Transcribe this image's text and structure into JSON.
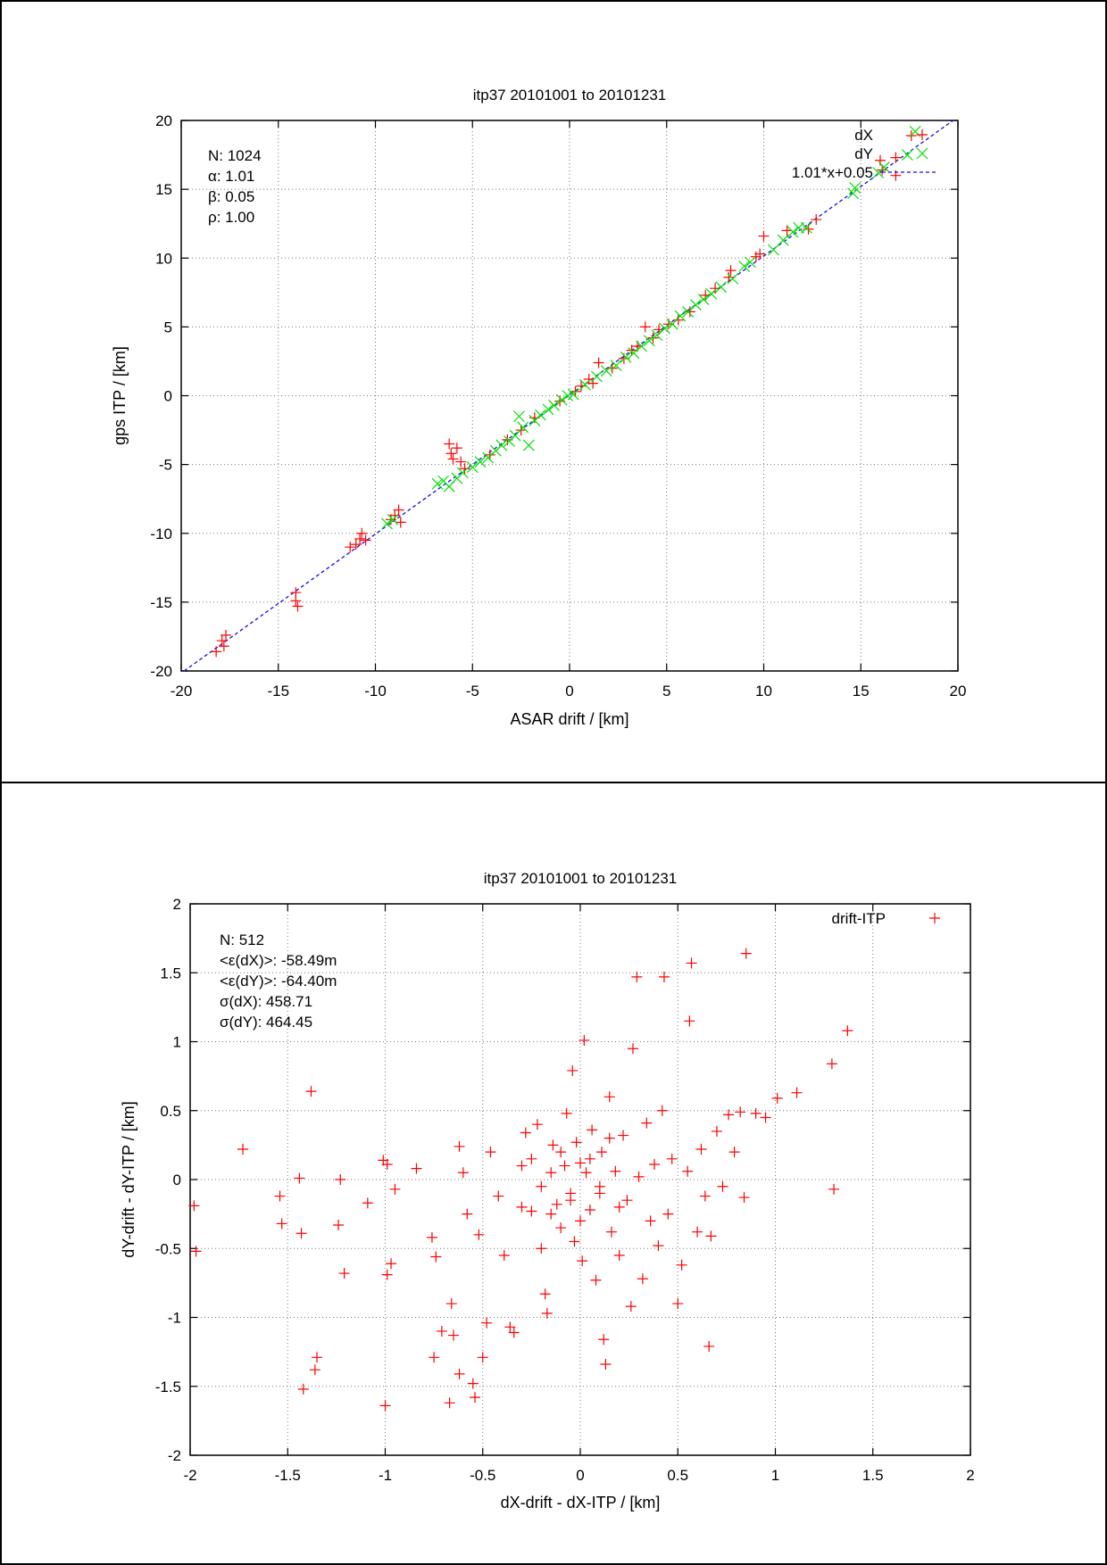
{
  "chart_data": [
    {
      "type": "scatter",
      "title": "itp37 20101001 to 20101231",
      "xlabel": "ASAR drift / [km]",
      "ylabel": "gps ITP / [km]",
      "xlim": [
        -20,
        20
      ],
      "ylim": [
        -20,
        20
      ],
      "xticks": [
        "-20",
        "-15",
        "-10",
        "-5",
        "0",
        "5",
        "10",
        "15",
        "20"
      ],
      "yticks": [
        "-20",
        "-15",
        "-10",
        "-5",
        "0",
        "5",
        "10",
        "15",
        "20"
      ],
      "grid": true,
      "legend_position": "top-right",
      "stats": [
        "N: 1024",
        "α: 1.01",
        "β: 0.05",
        "ρ: 1.00"
      ],
      "fit": {
        "label": "1.01*x+0.05",
        "slope": 1.01,
        "intercept": 0.05,
        "color": "#1010e0"
      },
      "series": [
        {
          "name": "dX",
          "marker": "plus",
          "color": "#ff0000",
          "points": [
            [
              -18.2,
              -18.6
            ],
            [
              -17.9,
              -17.8
            ],
            [
              -17.8,
              -18.2
            ],
            [
              -17.7,
              -17.4
            ],
            [
              -14.1,
              -14.3
            ],
            [
              -14.1,
              -14.9
            ],
            [
              -14.0,
              -15.3
            ],
            [
              -11.3,
              -11.0
            ],
            [
              -11.0,
              -10.8
            ],
            [
              -10.8,
              -10.4
            ],
            [
              -10.7,
              -10.0
            ],
            [
              -10.5,
              -10.5
            ],
            [
              -9.2,
              -9.0
            ],
            [
              -9.0,
              -8.7
            ],
            [
              -8.8,
              -8.3
            ],
            [
              -8.7,
              -9.2
            ],
            [
              -6.2,
              -3.5
            ],
            [
              -6.1,
              -4.2
            ],
            [
              -6.0,
              -4.6
            ],
            [
              -5.8,
              -3.8
            ],
            [
              -5.6,
              -4.8
            ],
            [
              -5.4,
              -5.3
            ],
            [
              -4.1,
              -4.3
            ],
            [
              -3.2,
              -3.2
            ],
            [
              -2.5,
              -2.5
            ],
            [
              -1.8,
              -1.6
            ],
            [
              -0.5,
              -0.4
            ],
            [
              0.3,
              0.3
            ],
            [
              0.6,
              0.7
            ],
            [
              1.0,
              1.2
            ],
            [
              1.2,
              0.9
            ],
            [
              1.5,
              2.4
            ],
            [
              2.2,
              2.0
            ],
            [
              2.8,
              2.7
            ],
            [
              3.2,
              3.3
            ],
            [
              3.5,
              3.6
            ],
            [
              3.9,
              5.0
            ],
            [
              4.3,
              4.2
            ],
            [
              4.6,
              4.8
            ],
            [
              5.1,
              5.2
            ],
            [
              5.6,
              5.5
            ],
            [
              6.2,
              6.1
            ],
            [
              7.0,
              7.3
            ],
            [
              7.5,
              7.8
            ],
            [
              8.2,
              8.6
            ],
            [
              8.3,
              9.1
            ],
            [
              9.6,
              10.1
            ],
            [
              9.8,
              10.3
            ],
            [
              10.0,
              11.6
            ],
            [
              11.2,
              12.0
            ],
            [
              12.3,
              12.1
            ],
            [
              12.7,
              12.8
            ],
            [
              16.0,
              17.1
            ],
            [
              16.1,
              16.4
            ],
            [
              16.8,
              16.0
            ],
            [
              16.8,
              17.3
            ],
            [
              17.6,
              18.9
            ]
          ]
        },
        {
          "name": "dY",
          "marker": "cross",
          "color": "#00e000",
          "points": [
            [
              -6.8,
              -6.4
            ],
            [
              -6.5,
              -6.2
            ],
            [
              -6.2,
              -6.6
            ],
            [
              -5.8,
              -6.0
            ],
            [
              -5.5,
              -5.6
            ],
            [
              -5.0,
              -5.2
            ],
            [
              -4.6,
              -4.8
            ],
            [
              -4.2,
              -4.5
            ],
            [
              -3.8,
              -4.0
            ],
            [
              -3.5,
              -3.6
            ],
            [
              -3.1,
              -3.3
            ],
            [
              -2.8,
              -2.9
            ],
            [
              -2.6,
              -1.5
            ],
            [
              -2.4,
              -2.3
            ],
            [
              -2.1,
              -3.6
            ],
            [
              -1.8,
              -1.8
            ],
            [
              -1.5,
              -1.4
            ],
            [
              -1.1,
              -1.0
            ],
            [
              -0.8,
              -0.7
            ],
            [
              -0.4,
              -0.3
            ],
            [
              -0.1,
              0.0
            ],
            [
              0.2,
              0.1
            ],
            [
              -9.4,
              -9.3
            ],
            [
              -9.1,
              -9.0
            ],
            [
              0.8,
              0.8
            ],
            [
              1.4,
              1.4
            ],
            [
              1.9,
              1.8
            ],
            [
              2.4,
              2.2
            ],
            [
              2.9,
              2.8
            ],
            [
              3.3,
              3.1
            ],
            [
              3.7,
              3.6
            ],
            [
              4.1,
              4.0
            ],
            [
              4.5,
              4.4
            ],
            [
              4.9,
              4.9
            ],
            [
              5.3,
              5.2
            ],
            [
              5.7,
              5.8
            ],
            [
              6.1,
              6.1
            ],
            [
              6.5,
              6.6
            ],
            [
              6.9,
              7.0
            ],
            [
              7.3,
              7.4
            ],
            [
              7.8,
              7.9
            ],
            [
              8.4,
              8.5
            ],
            [
              9.0,
              9.4
            ],
            [
              9.3,
              9.7
            ],
            [
              10.5,
              10.6
            ],
            [
              11.0,
              11.3
            ],
            [
              11.5,
              11.9
            ],
            [
              11.8,
              12.2
            ],
            [
              12.2,
              12.2
            ],
            [
              14.6,
              14.7
            ],
            [
              14.7,
              15.1
            ],
            [
              15.9,
              16.2
            ],
            [
              16.2,
              16.6
            ],
            [
              17.4,
              17.5
            ],
            [
              17.8,
              19.2
            ]
          ]
        }
      ]
    },
    {
      "type": "scatter",
      "title": "itp37 20101001 to 20101231",
      "xlabel": "dX-drift - dX-ITP / [km]",
      "ylabel": "dY-drift - dY-ITP / [km]",
      "xlim": [
        -2,
        2
      ],
      "ylim": [
        -2,
        2
      ],
      "xticks": [
        "-2",
        "-1.5",
        "-1",
        "-0.5",
        "0",
        "0.5",
        "1",
        "1.5",
        "2"
      ],
      "yticks": [
        "-2",
        "-1.5",
        "-1",
        "-0.5",
        "0",
        "0.5",
        "1",
        "1.5",
        "2"
      ],
      "grid": true,
      "legend_position": "top-right",
      "stats": [
        "N: 512",
        "<ε(dX)>:  -58.49m",
        "<ε(dY)>: -64.40m",
        "σ(dX):  458.71",
        "σ(dY):  464.45"
      ],
      "series": [
        {
          "name": "drift-ITP",
          "marker": "plus",
          "color": "#ff0000",
          "points": [
            [
              -1.98,
              -0.19
            ],
            [
              -1.97,
              -0.52
            ],
            [
              -1.73,
              0.22
            ],
            [
              -1.54,
              -0.12
            ],
            [
              -1.53,
              -0.32
            ],
            [
              -1.44,
              0.01
            ],
            [
              -1.43,
              -0.39
            ],
            [
              -1.42,
              -1.52
            ],
            [
              -1.38,
              0.64
            ],
            [
              -1.36,
              -1.38
            ],
            [
              -1.35,
              -1.29
            ],
            [
              -1.23,
              0.0
            ],
            [
              -1.24,
              -0.33
            ],
            [
              -1.21,
              -0.68
            ],
            [
              -1.09,
              -0.17
            ],
            [
              -1.01,
              0.14
            ],
            [
              -0.99,
              0.11
            ],
            [
              -0.99,
              -0.69
            ],
            [
              -0.97,
              -0.61
            ],
            [
              -0.95,
              -0.07
            ],
            [
              -0.84,
              0.08
            ],
            [
              -1.0,
              -1.64
            ],
            [
              -0.76,
              -0.42
            ],
            [
              -0.74,
              -0.56
            ],
            [
              -0.75,
              -1.29
            ],
            [
              -0.71,
              -1.1
            ],
            [
              -0.66,
              -0.9
            ],
            [
              -0.67,
              -1.62
            ],
            [
              -0.65,
              -1.13
            ],
            [
              -0.62,
              -1.41
            ],
            [
              -0.62,
              0.24
            ],
            [
              -0.6,
              0.05
            ],
            [
              -0.58,
              -0.25
            ],
            [
              -0.55,
              -1.48
            ],
            [
              -0.54,
              -1.58
            ],
            [
              -0.52,
              -0.4
            ],
            [
              -0.5,
              -1.29
            ],
            [
              -0.48,
              -1.04
            ],
            [
              -0.46,
              0.2
            ],
            [
              -0.42,
              -0.12
            ],
            [
              -0.39,
              -0.55
            ],
            [
              -0.36,
              -1.07
            ],
            [
              -0.34,
              -1.11
            ],
            [
              -0.3,
              0.1
            ],
            [
              -0.28,
              0.34
            ],
            [
              -0.25,
              -0.23
            ],
            [
              -0.22,
              0.4
            ],
            [
              -0.2,
              -0.5
            ],
            [
              -0.18,
              -0.83
            ],
            [
              -0.17,
              -0.97
            ],
            [
              -0.15,
              0.05
            ],
            [
              -0.14,
              0.25
            ],
            [
              -0.12,
              -0.18
            ],
            [
              -0.1,
              -0.35
            ],
            [
              -0.08,
              0.1
            ],
            [
              -0.07,
              0.48
            ],
            [
              -0.05,
              -0.1
            ],
            [
              -0.04,
              0.79
            ],
            [
              -0.03,
              -0.45
            ],
            [
              -0.02,
              0.27
            ],
            [
              0.0,
              0.12
            ],
            [
              0.0,
              -0.3
            ],
            [
              0.01,
              -0.59
            ],
            [
              0.02,
              1.01
            ],
            [
              0.03,
              0.05
            ],
            [
              0.05,
              -0.22
            ],
            [
              0.06,
              0.36
            ],
            [
              0.08,
              -0.73
            ],
            [
              0.1,
              -0.05
            ],
            [
              0.11,
              0.2
            ],
            [
              0.12,
              -1.16
            ],
            [
              0.13,
              -1.34
            ],
            [
              0.15,
              0.6
            ],
            [
              0.16,
              -0.38
            ],
            [
              0.18,
              0.06
            ],
            [
              0.2,
              -0.55
            ],
            [
              0.22,
              0.32
            ],
            [
              0.24,
              -0.15
            ],
            [
              0.26,
              -0.92
            ],
            [
              0.27,
              0.95
            ],
            [
              0.29,
              1.47
            ],
            [
              0.3,
              0.02
            ],
            [
              0.32,
              -0.72
            ],
            [
              0.34,
              0.41
            ],
            [
              0.36,
              -0.3
            ],
            [
              0.38,
              0.11
            ],
            [
              0.4,
              -0.48
            ],
            [
              0.42,
              0.5
            ],
            [
              0.43,
              1.47
            ],
            [
              0.45,
              -0.25
            ],
            [
              0.47,
              0.15
            ],
            [
              0.5,
              -0.9
            ],
            [
              0.52,
              -0.62
            ],
            [
              0.55,
              0.06
            ],
            [
              0.56,
              1.15
            ],
            [
              0.57,
              1.57
            ],
            [
              0.6,
              -0.38
            ],
            [
              0.62,
              0.22
            ],
            [
              0.64,
              -0.12
            ],
            [
              0.66,
              -1.21
            ],
            [
              0.67,
              -0.41
            ],
            [
              0.7,
              0.35
            ],
            [
              0.73,
              -0.05
            ],
            [
              0.76,
              0.47
            ],
            [
              0.79,
              0.2
            ],
            [
              0.82,
              0.49
            ],
            [
              0.85,
              1.64
            ],
            [
              0.9,
              0.48
            ],
            [
              0.95,
              0.45
            ],
            [
              1.01,
              0.59
            ],
            [
              1.11,
              0.63
            ],
            [
              1.29,
              0.84
            ],
            [
              1.3,
              -0.07
            ],
            [
              1.37,
              1.08
            ],
            [
              0.84,
              -0.13
            ],
            [
              -0.3,
              -0.2
            ],
            [
              -0.25,
              0.15
            ],
            [
              -0.2,
              -0.05
            ],
            [
              -0.15,
              -0.25
            ],
            [
              -0.1,
              0.2
            ],
            [
              -0.05,
              -0.15
            ],
            [
              0.05,
              0.15
            ],
            [
              0.1,
              -0.1
            ],
            [
              0.15,
              0.3
            ],
            [
              0.2,
              -0.2
            ]
          ]
        }
      ]
    }
  ]
}
